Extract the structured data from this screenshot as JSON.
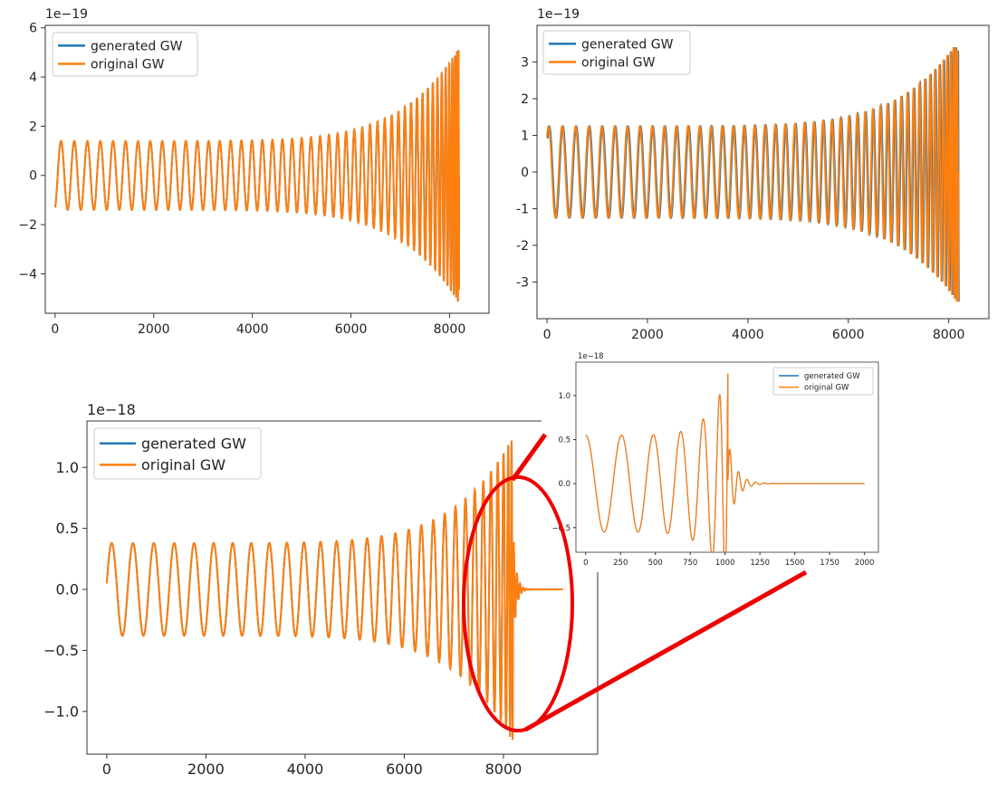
{
  "colors": {
    "generated": "#1f77b4",
    "original": "#ff7f0e",
    "highlight": "#ee0000"
  },
  "chart_data": [
    {
      "type": "line",
      "id": "top-left",
      "offset_label": "1e−19",
      "xlim": [
        -200,
        8800
      ],
      "ylim": [
        -5.6,
        6.1
      ],
      "xticks": [
        0,
        2000,
        4000,
        6000,
        8000
      ],
      "xtick_labels": [
        "0",
        "2000",
        "4000",
        "6000",
        "8000"
      ],
      "yticks": [
        -4,
        -2,
        0,
        2,
        4,
        6
      ],
      "ytick_labels": [
        "−4",
        "−2",
        "0",
        "2",
        "4",
        "6"
      ],
      "legend": [
        "generated GW",
        "original GW"
      ],
      "legend_position": "upper-left",
      "waveform": {
        "t_end": 8200,
        "t_c": 8192,
        "a0": 1.4,
        "a_peak": 5.2,
        "phase_offset": 0.0,
        "cycles": 48,
        "start_value": -1.3
      },
      "series": [
        {
          "name": "generated GW",
          "role": "generated"
        },
        {
          "name": "original GW",
          "role": "original"
        }
      ]
    },
    {
      "type": "line",
      "id": "top-right",
      "offset_label": "1e−19",
      "xlim": [
        -200,
        8800
      ],
      "ylim": [
        -4.0,
        4.0
      ],
      "xticks": [
        0,
        2000,
        4000,
        6000,
        8000
      ],
      "xtick_labels": [
        "0",
        "2000",
        "4000",
        "6000",
        "8000"
      ],
      "yticks": [
        -3,
        -2,
        -1,
        0,
        1,
        2,
        3
      ],
      "ytick_labels": [
        "-3",
        "-2",
        "-1",
        "0",
        "1",
        "2",
        "3"
      ],
      "legend": [
        "generated GW",
        "original GW"
      ],
      "legend_position": "upper-left",
      "waveform": {
        "t_end": 8200,
        "t_c": 8192,
        "a0": 1.25,
        "a_peak": 3.6,
        "phase_offset": 0.35,
        "cycles": 48,
        "start_value": 0.6
      },
      "series": [
        {
          "name": "generated GW",
          "role": "generated"
        },
        {
          "name": "original GW",
          "role": "original"
        }
      ]
    },
    {
      "type": "line",
      "id": "bottom",
      "offset_label": "1e−18",
      "xlim": [
        -400,
        9900
      ],
      "ylim": [
        -1.35,
        1.38
      ],
      "xticks": [
        0,
        2000,
        4000,
        6000,
        8000
      ],
      "xtick_labels": [
        "0",
        "2000",
        "4000",
        "6000",
        "8000"
      ],
      "yticks": [
        -1.0,
        -0.5,
        0.0,
        0.5,
        1.0
      ],
      "ytick_labels": [
        "−1.0",
        "−0.5",
        "0.0",
        "0.5",
        "1.0"
      ],
      "legend": [
        "generated GW",
        "original GW"
      ],
      "legend_position": "upper-left",
      "waveform": {
        "t_end": 9200,
        "t_c": 8192,
        "a0": 0.38,
        "a_peak": 1.25,
        "phase_offset": 0.0,
        "cycles": 30,
        "start_value": 0.05,
        "ringdown": true
      },
      "series": [
        {
          "name": "generated GW",
          "role": "generated"
        },
        {
          "name": "original GW",
          "role": "original"
        }
      ]
    },
    {
      "type": "line",
      "id": "inset",
      "offset_label": "1e−18",
      "xlim": [
        -70,
        2100
      ],
      "ylim": [
        -0.78,
        1.38
      ],
      "xticks": [
        0,
        250,
        500,
        750,
        1000,
        1250,
        1500,
        1750,
        2000
      ],
      "xtick_labels": [
        "0",
        "250",
        "500",
        "750",
        "1000",
        "1250",
        "1500",
        "1750",
        "2000"
      ],
      "yticks": [
        -0.5,
        0.0,
        0.5,
        1.0
      ],
      "ytick_labels": [
        "−0.5",
        "0.0",
        "0.5",
        "1.0"
      ],
      "legend": [
        "generated GW",
        "original GW"
      ],
      "legend_position": "upper-right",
      "waveform": {
        "t_end": 2000,
        "t_c": 1020,
        "a0": 0.55,
        "a_peak": 1.25,
        "phase_offset": 0.0,
        "cycles": 6,
        "start_value": 0.55,
        "ringdown": true
      },
      "series": [
        {
          "name": "generated GW",
          "role": "generated"
        },
        {
          "name": "original GW",
          "role": "original"
        }
      ]
    }
  ]
}
